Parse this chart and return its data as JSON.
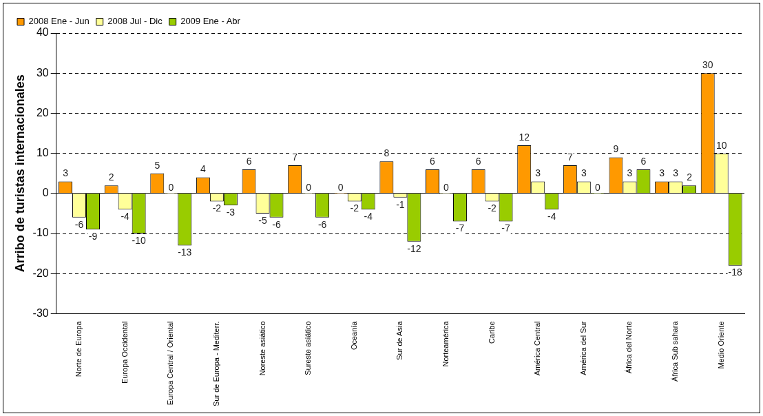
{
  "chart_data": {
    "type": "bar",
    "ylabel": "Arribo de turistas internacionales",
    "categories": [
      "Norte de Europa",
      "Europa Occidental",
      "Europa Central / Oriental",
      "Sur de Europa - Mediterr.",
      "Noreste asiático",
      "Sureste asiático",
      "Oceanía",
      "Sur de Asia",
      "Norteamérica",
      "Caribe",
      "América Central",
      "América del Sur",
      "África del Norte",
      "África Sub sahara",
      "Medio Oriente"
    ],
    "series": [
      {
        "name": "2008 Ene - Jun",
        "color": "#ff9900",
        "values": [
          3,
          2,
          5,
          4,
          6,
          7,
          0,
          8,
          6,
          6,
          12,
          7,
          9,
          3,
          30
        ]
      },
      {
        "name": "2008 Jul - Dic",
        "color": "#ffff99",
        "values": [
          -6,
          -4,
          0,
          -2,
          -5,
          0,
          -2,
          -1,
          0,
          -2,
          3,
          3,
          3,
          3,
          10
        ]
      },
      {
        "name": "2009 Ene - Abr",
        "color": "#99cc00",
        "values": [
          -9,
          -10,
          -13,
          -3,
          -6,
          -6,
          -4,
          -12,
          -7,
          -7,
          -4,
          0,
          6,
          2,
          -18
        ]
      }
    ],
    "ylim": [
      -30,
      40
    ],
    "yticks": [
      -30,
      -20,
      -10,
      0,
      10,
      20,
      30,
      40
    ],
    "grid": "y",
    "legend": "top left",
    "data_labels": true
  }
}
